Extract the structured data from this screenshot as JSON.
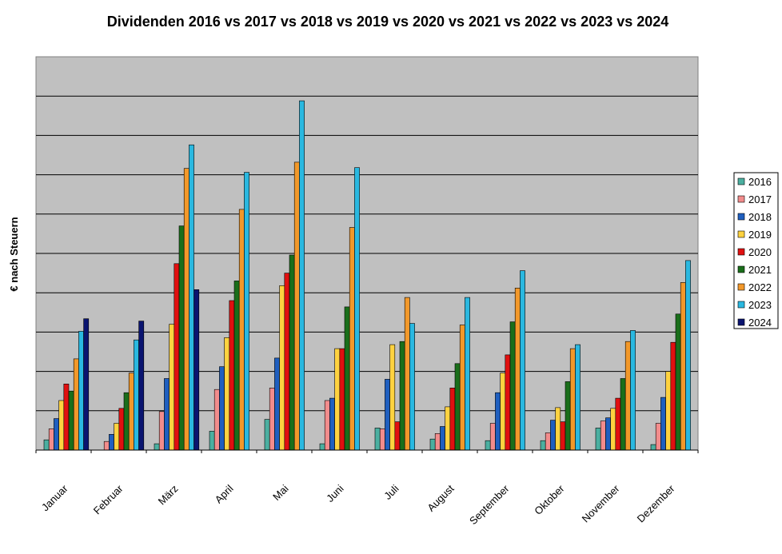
{
  "chart_data": {
    "type": "bar",
    "title": "Dividenden 2016 vs 2017 vs 2018 vs 2019 vs 2020 vs 2021 vs 2022 vs 2023 vs 2024",
    "ylabel": "€ nach Steuern",
    "xlabel": "",
    "ylim": [
      0,
      100
    ],
    "grid": true,
    "legend_position": "right",
    "categories": [
      "Januar",
      "Februar",
      "März",
      "April",
      "Mai",
      "Juni",
      "Juli",
      "August",
      "September",
      "Oktober",
      "November",
      "Dezember"
    ],
    "series": [
      {
        "name": "2016",
        "color": "#4BAFA0",
        "values": [
          2.6,
          0,
          1.6,
          4.8,
          7.8,
          1.6,
          5.6,
          2.8,
          2.4,
          2.4,
          5.6,
          1.4
        ]
      },
      {
        "name": "2017",
        "color": "#F28C8C",
        "values": [
          5.4,
          2.2,
          9.8,
          15.4,
          15.8,
          12.6,
          5.4,
          4.2,
          6.8,
          4.4,
          7.4,
          6.8
        ]
      },
      {
        "name": "2018",
        "color": "#1F5FBF",
        "values": [
          8.0,
          4.0,
          18.2,
          21.2,
          23.4,
          13.2,
          18.0,
          6.0,
          14.6,
          7.6,
          8.2,
          13.4
        ]
      },
      {
        "name": "2019",
        "color": "#FFD23F",
        "values": [
          12.6,
          6.8,
          32.0,
          28.6,
          41.8,
          25.8,
          26.8,
          11.0,
          19.6,
          10.8,
          10.6,
          20.0
        ]
      },
      {
        "name": "2020",
        "color": "#E01010",
        "values": [
          16.8,
          10.6,
          47.4,
          38.0,
          45.0,
          25.8,
          7.2,
          15.8,
          24.2,
          7.2,
          13.2,
          27.4
        ]
      },
      {
        "name": "2021",
        "color": "#1A6E1A",
        "values": [
          15.0,
          14.6,
          57.0,
          43.0,
          49.6,
          36.4,
          27.6,
          22.0,
          32.6,
          17.4,
          18.2,
          34.6
        ]
      },
      {
        "name": "2022",
        "color": "#F2982A",
        "values": [
          23.2,
          19.6,
          71.6,
          61.2,
          73.2,
          56.6,
          38.8,
          31.8,
          41.2,
          25.8,
          27.6,
          42.6
        ]
      },
      {
        "name": "2023",
        "color": "#2AB8E0",
        "values": [
          30.2,
          28.0,
          77.6,
          70.6,
          88.8,
          71.8,
          32.2,
          38.8,
          45.6,
          26.8,
          30.4,
          48.2
        ]
      },
      {
        "name": "2024",
        "color": "#0A1470",
        "values": [
          33.4,
          32.8,
          40.8,
          null,
          null,
          null,
          null,
          null,
          null,
          null,
          null,
          null
        ]
      }
    ]
  }
}
